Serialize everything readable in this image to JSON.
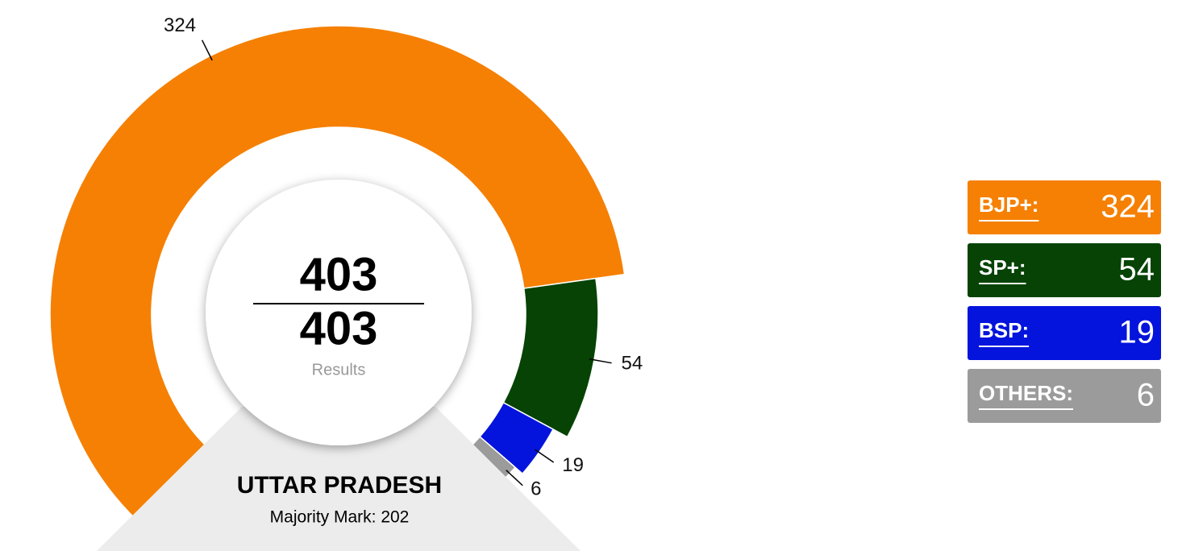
{
  "chart_data": {
    "type": "donut",
    "title": "UTTAR PRADESH",
    "subtitle": "Majority Mark: 202",
    "center": {
      "declared": 403,
      "total": 403,
      "label": "Results"
    },
    "categories": [
      "BJP+:",
      "SP+:",
      "BSP:",
      "OTHERS:"
    ],
    "values": [
      324,
      54,
      19,
      6
    ],
    "colors": [
      "#f58003",
      "#064304",
      "#0414dc",
      "#9b9b9b"
    ]
  }
}
